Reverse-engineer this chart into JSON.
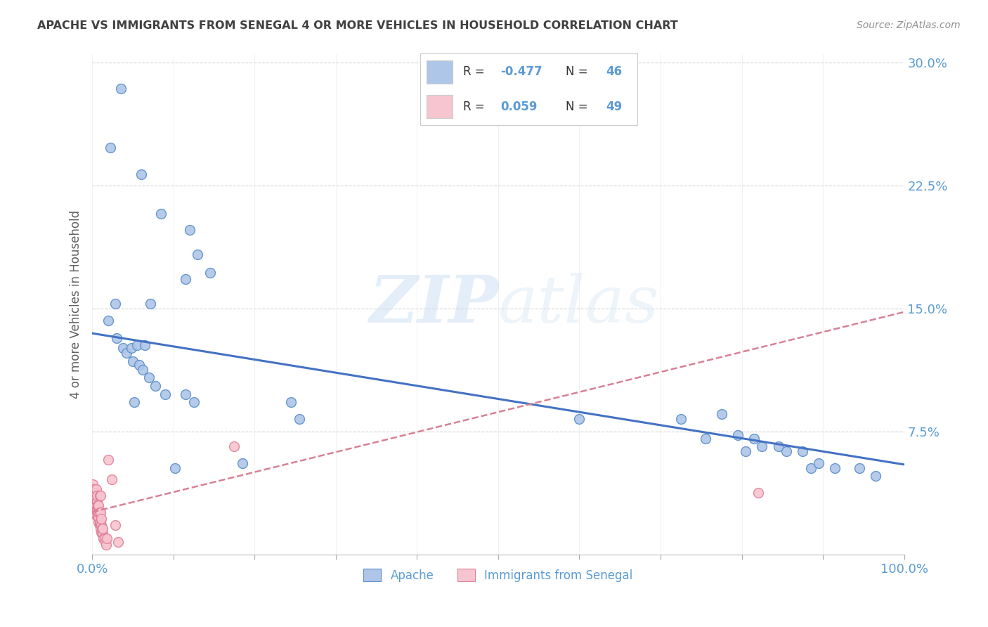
{
  "title": "APACHE VS IMMIGRANTS FROM SENEGAL 4 OR MORE VEHICLES IN HOUSEHOLD CORRELATION CHART",
  "source": "Source: ZipAtlas.com",
  "ylabel": "4 or more Vehicles in Household",
  "xlim": [
    0.0,
    1.0
  ],
  "ylim": [
    0.0,
    0.305
  ],
  "yticks": [
    0.075,
    0.15,
    0.225,
    0.3
  ],
  "ytick_labels": [
    "7.5%",
    "15.0%",
    "22.5%",
    "30.0%"
  ],
  "xticks": [
    0.0,
    0.1,
    0.2,
    0.3,
    0.4,
    0.5,
    0.6,
    0.7,
    0.8,
    0.9,
    1.0
  ],
  "xtick_labels": [
    "0.0%",
    "",
    "",
    "",
    "",
    "",
    "",
    "",
    "",
    "",
    "100.0%"
  ],
  "apache_R": -0.477,
  "apache_N": 46,
  "senegal_R": 0.059,
  "senegal_N": 49,
  "apache_color": "#aec6e8",
  "apache_edge_color": "#5b8fc9",
  "apache_line_color": "#4472c4",
  "senegal_color": "#f7c5d0",
  "senegal_edge_color": "#e08098",
  "senegal_line_color": "#d98095",
  "watermark_zip": "ZIP",
  "watermark_atlas": "atlas",
  "apache_scatter_x": [
    0.035,
    0.06,
    0.12,
    0.085,
    0.13,
    0.115,
    0.145,
    0.02,
    0.03,
    0.038,
    0.042,
    0.048,
    0.055,
    0.065,
    0.05,
    0.058,
    0.062,
    0.07,
    0.078,
    0.09,
    0.115,
    0.125,
    0.245,
    0.255,
    0.6,
    0.725,
    0.755,
    0.795,
    0.815,
    0.825,
    0.845,
    0.855,
    0.875,
    0.885,
    0.895,
    0.915,
    0.945,
    0.965,
    0.022,
    0.028,
    0.052,
    0.072,
    0.102,
    0.185,
    0.775,
    0.805
  ],
  "apache_scatter_y": [
    0.284,
    0.232,
    0.198,
    0.208,
    0.183,
    0.168,
    0.172,
    0.143,
    0.132,
    0.126,
    0.123,
    0.126,
    0.128,
    0.128,
    0.118,
    0.116,
    0.113,
    0.108,
    0.103,
    0.098,
    0.098,
    0.093,
    0.093,
    0.083,
    0.083,
    0.083,
    0.071,
    0.073,
    0.071,
    0.066,
    0.066,
    0.063,
    0.063,
    0.053,
    0.056,
    0.053,
    0.053,
    0.048,
    0.248,
    0.153,
    0.093,
    0.153,
    0.053,
    0.056,
    0.086,
    0.063
  ],
  "senegal_scatter_x": [
    0.001,
    0.0015,
    0.002,
    0.0025,
    0.003,
    0.003,
    0.0035,
    0.004,
    0.004,
    0.005,
    0.005,
    0.005,
    0.006,
    0.006,
    0.006,
    0.007,
    0.007,
    0.007,
    0.007,
    0.008,
    0.008,
    0.008,
    0.008,
    0.009,
    0.009,
    0.009,
    0.009,
    0.01,
    0.01,
    0.01,
    0.01,
    0.011,
    0.011,
    0.011,
    0.012,
    0.012,
    0.013,
    0.013,
    0.014,
    0.015,
    0.016,
    0.017,
    0.018,
    0.02,
    0.024,
    0.028,
    0.032,
    0.175,
    0.82
  ],
  "senegal_scatter_y": [
    0.043,
    0.04,
    0.036,
    0.033,
    0.038,
    0.03,
    0.036,
    0.026,
    0.038,
    0.024,
    0.03,
    0.04,
    0.028,
    0.033,
    0.036,
    0.023,
    0.026,
    0.028,
    0.03,
    0.02,
    0.023,
    0.026,
    0.03,
    0.018,
    0.02,
    0.026,
    0.036,
    0.016,
    0.02,
    0.026,
    0.036,
    0.014,
    0.018,
    0.022,
    0.013,
    0.016,
    0.013,
    0.016,
    0.01,
    0.01,
    0.008,
    0.006,
    0.01,
    0.058,
    0.046,
    0.018,
    0.008,
    0.066,
    0.038
  ],
  "apache_trend_x": [
    0.0,
    1.0
  ],
  "apache_trend_y": [
    0.135,
    0.055
  ],
  "senegal_trend_x": [
    0.0,
    1.0
  ],
  "senegal_trend_y": [
    0.026,
    0.148
  ],
  "background_color": "#ffffff",
  "grid_color": "#d0d0d0",
  "title_color": "#404040",
  "tick_label_color": "#5b9bd5",
  "ylabel_color": "#606060",
  "legend_border_color": "#cccccc",
  "source_color": "#909090"
}
